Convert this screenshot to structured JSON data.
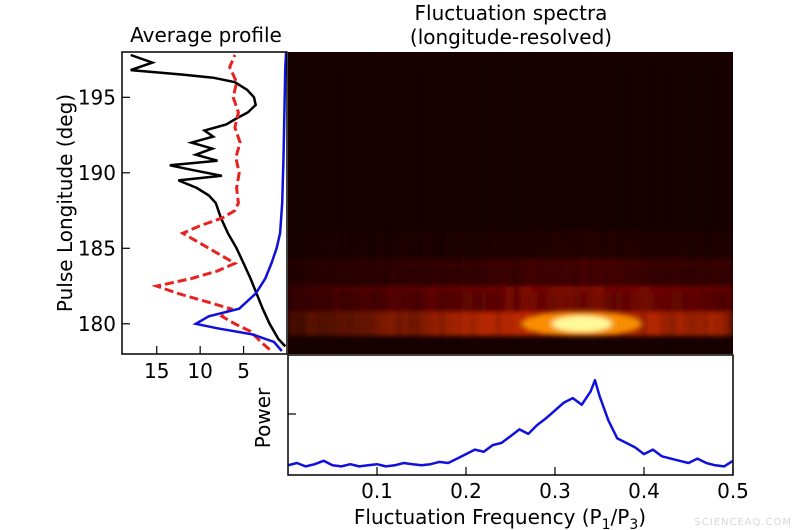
{
  "watermark": "SCIENCEAQ.COM",
  "colors": {
    "profile_total": "#000000",
    "profile_dashed": "#e8231f",
    "profile_blue": "#1010dd",
    "power_line": "#1010dd",
    "map_background": "#140000",
    "map_hot": "#ffffa0"
  },
  "chart_data": [
    {
      "type": "line",
      "title": "Average profile",
      "ylabel": "Pulse Longitude (deg)",
      "xlabel": "",
      "xlim": [
        19,
        0
      ],
      "ylim": [
        178,
        198
      ],
      "x_ticks": [
        15,
        10,
        5
      ],
      "y_ticks": [
        180,
        185,
        190,
        195
      ],
      "series": [
        {
          "style": "solid",
          "color": "#000000",
          "points": [
            [
              0.2,
              178.5
            ],
            [
              1.0,
              179.0
            ],
            [
              2.0,
              180.0
            ],
            [
              2.8,
              181.0
            ],
            [
              3.5,
              182.0
            ],
            [
              4.2,
              183.0
            ],
            [
              5.0,
              184.0
            ],
            [
              5.8,
              185.0
            ],
            [
              6.8,
              186.0
            ],
            [
              7.6,
              187.0
            ],
            [
              8.2,
              188.0
            ],
            [
              9.0,
              188.5
            ],
            [
              10.4,
              189.0
            ],
            [
              12.5,
              189.5
            ],
            [
              7.5,
              189.8
            ],
            [
              11.0,
              190.2
            ],
            [
              13.5,
              190.5
            ],
            [
              8.0,
              190.8
            ],
            [
              10.5,
              191.2
            ],
            [
              8.6,
              191.6
            ],
            [
              11.0,
              192.0
            ],
            [
              8.5,
              192.4
            ],
            [
              9.5,
              192.8
            ],
            [
              7.0,
              193.2
            ],
            [
              5.8,
              193.6
            ],
            [
              4.5,
              194.0
            ],
            [
              3.6,
              194.5
            ],
            [
              3.8,
              195.0
            ],
            [
              4.6,
              195.5
            ],
            [
              6.0,
              196.0
            ],
            [
              8.5,
              196.3
            ],
            [
              12.0,
              196.5
            ],
            [
              16.0,
              196.7
            ],
            [
              18.0,
              196.8
            ],
            [
              15.5,
              197.3
            ],
            [
              18.0,
              197.8
            ]
          ]
        },
        {
          "style": "dashed",
          "color": "#e8231f",
          "points": [
            [
              2.0,
              178.3
            ],
            [
              3.0,
              178.8
            ],
            [
              4.2,
              179.5
            ],
            [
              6.0,
              180.0
            ],
            [
              7.5,
              180.5
            ],
            [
              6.5,
              181.0
            ],
            [
              9.5,
              181.5
            ],
            [
              12.5,
              182.0
            ],
            [
              15.0,
              182.5
            ],
            [
              11.0,
              183.0
            ],
            [
              8.0,
              183.5
            ],
            [
              6.0,
              184.0
            ],
            [
              7.5,
              184.5
            ],
            [
              9.0,
              185.0
            ],
            [
              10.5,
              185.5
            ],
            [
              12.0,
              186.0
            ],
            [
              10.0,
              186.5
            ],
            [
              7.5,
              187.0
            ],
            [
              6.0,
              187.5
            ],
            [
              5.6,
              188.0
            ],
            [
              5.8,
              189.0
            ],
            [
              5.5,
              190.0
            ],
            [
              5.9,
              191.0
            ],
            [
              5.4,
              192.0
            ],
            [
              6.0,
              193.0
            ],
            [
              5.6,
              194.0
            ],
            [
              6.2,
              195.0
            ],
            [
              5.8,
              196.0
            ],
            [
              6.6,
              197.0
            ],
            [
              6.0,
              197.8
            ]
          ]
        },
        {
          "style": "solid",
          "color": "#1010dd",
          "points": [
            [
              0.6,
              178.2
            ],
            [
              1.5,
              178.8
            ],
            [
              4.0,
              179.3
            ],
            [
              8.0,
              179.7
            ],
            [
              10.5,
              180.0
            ],
            [
              9.0,
              180.5
            ],
            [
              5.5,
              181.0
            ],
            [
              3.6,
              182.0
            ],
            [
              2.5,
              183.0
            ],
            [
              1.8,
              184.0
            ],
            [
              1.2,
              185.0
            ],
            [
              0.8,
              186.0
            ],
            [
              0.55,
              188.0
            ],
            [
              0.4,
              191.0
            ],
            [
              0.3,
              194.0
            ],
            [
              0.2,
              197.0
            ],
            [
              0.1,
              198.0
            ]
          ]
        }
      ]
    },
    {
      "type": "heatmap",
      "title": "Fluctuation spectra\n(longitude-resolved)",
      "title_lines": [
        "Fluctuation spectra",
        "(longitude-resolved)"
      ],
      "xlim": [
        0.0,
        0.5
      ],
      "ylim": [
        178,
        198
      ],
      "bands": [
        {
          "longitude": 180.0,
          "width": 0.8,
          "intensity": 0.95
        },
        {
          "longitude": 181.6,
          "width": 0.9,
          "intensity": 0.6
        },
        {
          "longitude": 183.2,
          "width": 1.1,
          "intensity": 0.35
        },
        {
          "longitude": 185.0,
          "width": 1.2,
          "intensity": 0.15
        }
      ],
      "peak": {
        "frequency": 0.33,
        "longitude": 180.0,
        "intensity": 1.0
      }
    },
    {
      "type": "line",
      "ylabel": "Power",
      "xlabel": "Fluctuation Frequency (P",
      "xlabel_sub1": "1",
      "xlabel_mid": "/P",
      "xlabel_sub2": "3",
      "xlabel_end": ")",
      "xlim": [
        0.0,
        0.5
      ],
      "x_ticks": [
        "0.1",
        "0.2",
        "0.3",
        "0.4",
        "0.5"
      ],
      "series": [
        {
          "color": "#1010dd",
          "x": [
            0.0,
            0.01,
            0.02,
            0.03,
            0.04,
            0.05,
            0.06,
            0.07,
            0.08,
            0.09,
            0.1,
            0.11,
            0.12,
            0.13,
            0.14,
            0.15,
            0.16,
            0.17,
            0.18,
            0.19,
            0.2,
            0.21,
            0.22,
            0.23,
            0.24,
            0.25,
            0.26,
            0.27,
            0.28,
            0.29,
            0.3,
            0.31,
            0.32,
            0.33,
            0.34,
            0.345,
            0.35,
            0.36,
            0.37,
            0.38,
            0.39,
            0.4,
            0.41,
            0.42,
            0.43,
            0.44,
            0.45,
            0.46,
            0.47,
            0.48,
            0.49,
            0.5
          ],
          "y": [
            0.06,
            0.08,
            0.05,
            0.07,
            0.1,
            0.06,
            0.05,
            0.07,
            0.05,
            0.06,
            0.07,
            0.05,
            0.06,
            0.08,
            0.07,
            0.06,
            0.07,
            0.09,
            0.08,
            0.12,
            0.16,
            0.2,
            0.18,
            0.24,
            0.26,
            0.32,
            0.38,
            0.34,
            0.42,
            0.48,
            0.55,
            0.62,
            0.66,
            0.6,
            0.72,
            0.82,
            0.68,
            0.46,
            0.3,
            0.26,
            0.22,
            0.16,
            0.2,
            0.14,
            0.12,
            0.1,
            0.08,
            0.12,
            0.08,
            0.06,
            0.05,
            0.1
          ]
        }
      ]
    }
  ]
}
